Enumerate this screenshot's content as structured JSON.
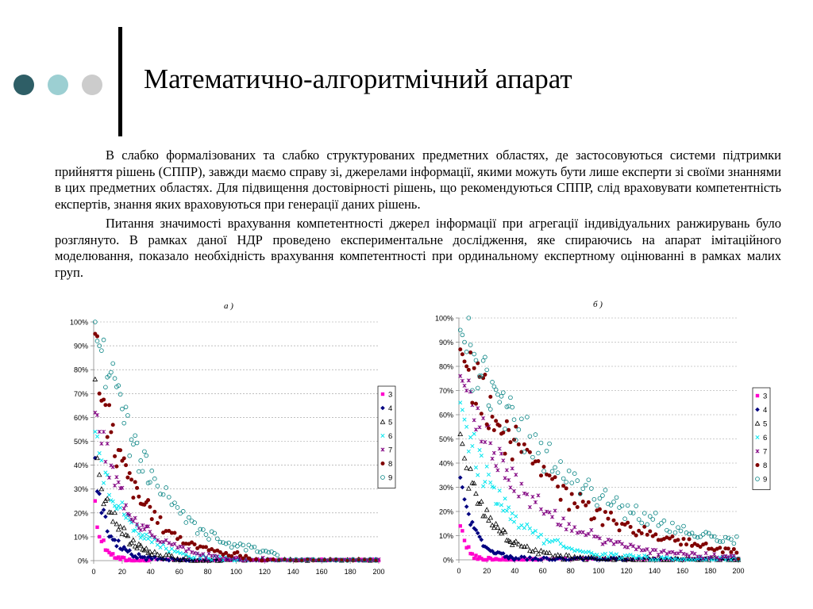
{
  "slide": {
    "title": "Математично-алгоритмічний апарат",
    "paragraphs": [
      "В слабко формалізованих та слабко структурованих предметних областях, де застосовуються системи підтримки прийняття рішень (СППР), завжди маємо справу зі, джерелами інформації, якими можуть бути лише експерти зі своїми знаннями в цих предметних областях. Для підвищення достовірності рішень, що рекомендуються СППР, слід враховувати компетентність експертів, знання яких враховуються при генерації даних рішень.",
      "Питання значимості врахування компетентності джерел інформації при агрегації індивідуальних ранжирувань було розглянуто. В рамках даної НДР проведено експериментальне дослідження, яке спираючись на апарат імітаційного моделювання, показало необхідність врахування компетентності при ординальному експертному оцінюванні в рамках малих груп."
    ],
    "decor_colors": [
      "#2e5e66",
      "#9ccfd2",
      "#cccccc"
    ]
  },
  "chart_data": [
    {
      "type": "scatter",
      "subtitle": "а )",
      "x_ticks": [
        "0",
        "20",
        "40",
        "60",
        "80",
        "100",
        "120",
        "140",
        "160",
        "180",
        "200"
      ],
      "y_ticks": [
        "0%",
        "10%",
        "20%",
        "30%",
        "40%",
        "50%",
        "60%",
        "70%",
        "80%",
        "90%",
        "100%"
      ],
      "xlim": [
        0,
        200
      ],
      "ylim": [
        0,
        100
      ],
      "grid": "horizontal dashed",
      "legend_position": "right",
      "series": [
        {
          "name": "3",
          "color": "#ff00cc",
          "marker": "square",
          "decay": 6,
          "start": [
            25,
            14,
            10,
            8
          ],
          "max_x": 40
        },
        {
          "name": "4",
          "color": "#000080",
          "marker": "diamond",
          "decay": 11,
          "start": [
            43,
            29,
            28,
            20
          ],
          "max_x": 70
        },
        {
          "name": "5",
          "color": "#000000",
          "marker": "triangle",
          "decay": 16,
          "start": [
            76,
            43,
            36,
            30
          ],
          "max_x": 90
        },
        {
          "name": "6",
          "color": "#00e5ee",
          "marker": "x",
          "decay": 21,
          "start": [
            54,
            52,
            45,
            42
          ],
          "max_x": 110
        },
        {
          "name": "7",
          "color": "#800080",
          "marker": "star",
          "decay": 24,
          "start": [
            62,
            61,
            54,
            49
          ],
          "max_x": 120
        },
        {
          "name": "8",
          "color": "#800000",
          "marker": "circle",
          "decay": 28,
          "start": [
            95,
            94,
            70,
            67
          ],
          "max_x": 110
        },
        {
          "name": "9",
          "color": "#008080",
          "marker": "circle-open",
          "decay": 36,
          "start": [
            100,
            92,
            90,
            88
          ],
          "max_x": 130
        }
      ]
    },
    {
      "type": "scatter",
      "subtitle": "б )",
      "x_ticks": [
        "0",
        "20",
        "40",
        "60",
        "80",
        "100",
        "120",
        "140",
        "160",
        "180",
        "200"
      ],
      "y_ticks": [
        "0%",
        "10%",
        "20%",
        "30%",
        "40%",
        "50%",
        "60%",
        "70%",
        "80%",
        "90%",
        "100%"
      ],
      "xlim": [
        0,
        200
      ],
      "ylim": [
        0,
        100
      ],
      "grid": "horizontal dashed",
      "legend_position": "right",
      "series": [
        {
          "name": "3",
          "color": "#ff00cc",
          "marker": "square",
          "decay": 4,
          "start": [
            14,
            12,
            8,
            5
          ],
          "max_x": 60
        },
        {
          "name": "4",
          "color": "#000080",
          "marker": "diamond",
          "decay": 10,
          "start": [
            34,
            30,
            25,
            22
          ],
          "max_x": 120
        },
        {
          "name": "5",
          "color": "#000000",
          "marker": "triangle",
          "decay": 20,
          "start": [
            52,
            48,
            42,
            38
          ],
          "max_x": 200
        },
        {
          "name": "6",
          "color": "#00e5ee",
          "marker": "x",
          "decay": 30,
          "start": [
            65,
            62,
            58,
            55
          ],
          "max_x": 200
        },
        {
          "name": "7",
          "color": "#800080",
          "marker": "star",
          "decay": 45,
          "start": [
            76,
            74,
            72,
            70
          ],
          "max_x": 200
        },
        {
          "name": "8",
          "color": "#800000",
          "marker": "circle",
          "decay": 65,
          "start": [
            87,
            85,
            82,
            80
          ],
          "max_x": 200
        },
        {
          "name": "9",
          "color": "#008080",
          "marker": "circle-open",
          "decay": 80,
          "start": [
            95,
            93,
            90,
            86
          ],
          "max_x": 200
        }
      ]
    }
  ]
}
